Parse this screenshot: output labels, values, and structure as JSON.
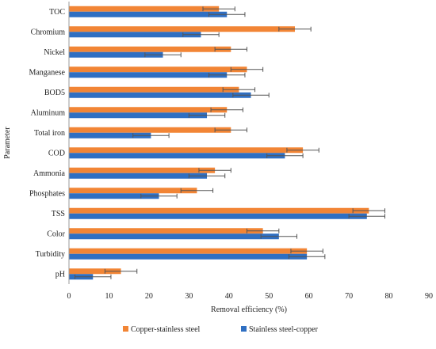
{
  "chart_data": {
    "type": "bar",
    "orientation": "horizontal",
    "categories": [
      "TOC",
      "Chromium",
      "Nickel",
      "Manganese",
      "BOD5",
      "Aluminum",
      "Total iron",
      "COD",
      "Ammonia",
      "Phosphates",
      "TSS",
      "Color",
      "Turbidity",
      "pH"
    ],
    "series": [
      {
        "name": "Copper-stainless steel",
        "color": "#F28535",
        "values": [
          37.5,
          56.5,
          40.5,
          44.5,
          42.5,
          39.5,
          40.5,
          58.5,
          36.5,
          32.0,
          75.0,
          48.5,
          59.5,
          13.0
        ],
        "errors": [
          4.0,
          4.0,
          4.0,
          4.0,
          4.0,
          4.0,
          4.0,
          4.0,
          4.0,
          4.0,
          4.0,
          4.0,
          4.0,
          4.0
        ]
      },
      {
        "name": "Stainless steel-copper",
        "color": "#2F6FC2",
        "values": [
          39.5,
          33.0,
          23.5,
          39.5,
          45.5,
          34.5,
          20.5,
          54.0,
          34.5,
          22.5,
          74.5,
          52.5,
          59.5,
          6.0
        ],
        "errors": [
          4.5,
          4.5,
          4.5,
          4.5,
          4.5,
          4.5,
          4.5,
          4.5,
          4.5,
          4.5,
          4.5,
          4.5,
          4.5,
          4.5
        ]
      }
    ],
    "xlabel": "Removal efficiency (%)",
    "ylabel": "Parameter",
    "xlim": [
      0,
      90
    ],
    "xticks": [
      "0",
      "10",
      "20",
      "30",
      "40",
      "50",
      "60",
      "70",
      "80",
      "90"
    ],
    "grid": false,
    "legend_position": "bottom"
  }
}
